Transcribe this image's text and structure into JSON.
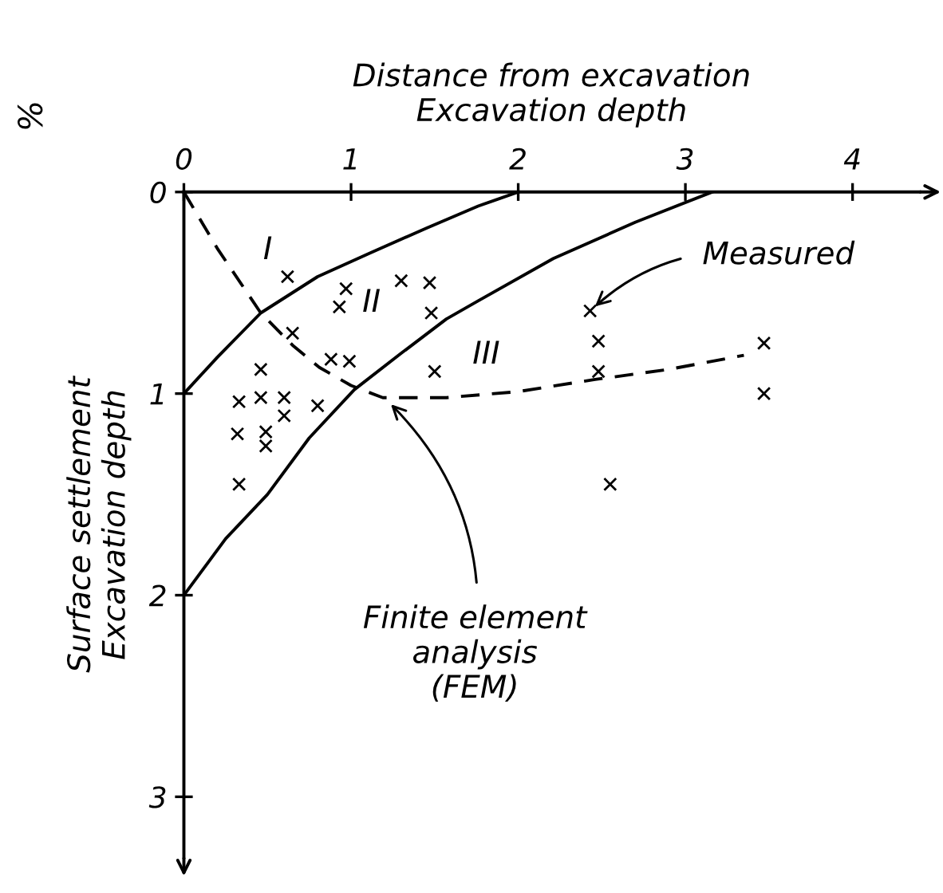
{
  "chart_data": {
    "type": "scatter",
    "xlabel": "Distance from excavation\nExcavation depth",
    "ylabel": "Surface settlement\nExcavation depth",
    "y2label": "%",
    "xlim": [
      0,
      4.4
    ],
    "ylim": [
      3.3,
      0
    ],
    "xticks": [
      0,
      1,
      2,
      3,
      4
    ],
    "yticks": [
      0,
      1,
      2,
      3
    ],
    "grid": false,
    "legend": false,
    "series": [
      {
        "marker": "cross",
        "color": "#000000",
        "x": [
          0.62,
          0.97,
          0.93,
          1.3,
          1.47,
          1.48,
          0.65,
          0.88,
          0.99,
          1.5,
          0.46,
          0.33,
          0.46,
          0.6,
          0.6,
          0.8,
          0.32,
          0.49,
          0.49,
          0.33,
          2.43,
          2.48,
          2.48,
          3.47,
          3.47,
          2.55
        ],
        "values": [
          0.42,
          0.48,
          0.57,
          0.44,
          0.45,
          0.6,
          0.7,
          0.83,
          0.84,
          0.89,
          0.88,
          1.04,
          1.02,
          1.02,
          1.11,
          1.06,
          1.2,
          1.19,
          1.26,
          1.45,
          0.59,
          0.74,
          0.89,
          0.75,
          1.0,
          1.45
        ]
      },
      {
        "type": "line",
        "line_style": "solid",
        "color": "#000000",
        "x": [
          0,
          0.2,
          0.46,
          0.8,
          1.12,
          1.45,
          1.76,
          2.0
        ],
        "values": [
          1.0,
          0.82,
          0.6,
          0.42,
          0.3,
          0.18,
          0.07,
          0.0
        ]
      },
      {
        "type": "line",
        "line_style": "solid",
        "color": "#000000",
        "x": [
          0,
          0.25,
          0.5,
          0.75,
          1.02,
          1.3,
          1.57,
          1.76,
          2.21,
          2.7,
          3.16
        ],
        "values": [
          2.0,
          1.72,
          1.5,
          1.22,
          0.98,
          0.8,
          0.63,
          0.54,
          0.33,
          0.15,
          0.0
        ]
      },
      {
        "type": "line",
        "line_style": "dashed",
        "color": "#000000",
        "x": [
          0,
          0.2,
          0.46,
          0.65,
          0.81,
          1.0,
          1.19,
          1.57,
          2.0,
          2.46,
          2.9,
          3.35
        ],
        "values": [
          0.0,
          0.28,
          0.6,
          0.76,
          0.87,
          0.96,
          1.02,
          1.02,
          0.99,
          0.93,
          0.88,
          0.81
        ]
      }
    ],
    "annotations": [
      "I",
      "II",
      "III",
      {
        "text": "Measured",
        "x": 2.43,
        "y": 0.59
      },
      {
        "text": "Finite element\nanalysis\n(FEM)",
        "x": 1.21,
        "y": 1.03
      }
    ]
  }
}
